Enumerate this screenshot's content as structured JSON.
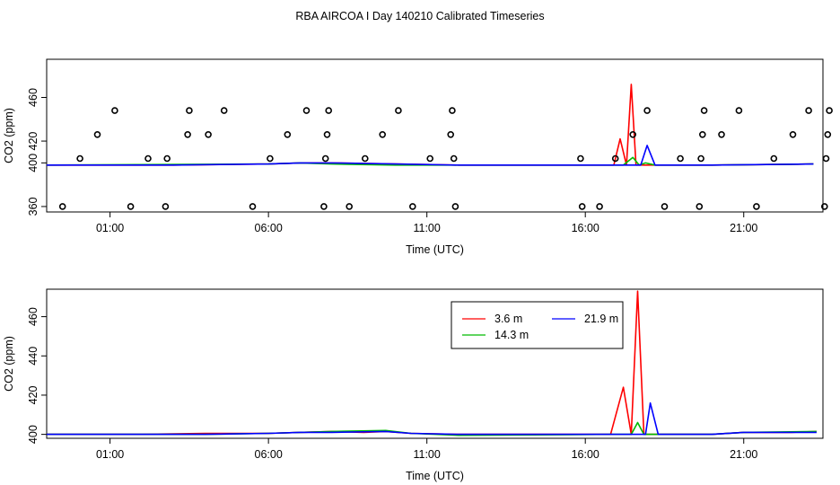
{
  "page": {
    "title": "RBA AIRCOA I  Day 140210  Calibrated Timeseries"
  },
  "chart_data": [
    {
      "type": "line",
      "ylabel": "CO2 (ppm)",
      "xlabel": "Time (UTC)",
      "xlim": [
        -1.0,
        23.5
      ],
      "ylim": [
        355,
        495
      ],
      "xticks": [
        {
          "value": 1,
          "label": "01:00"
        },
        {
          "value": 6,
          "label": "06:00"
        },
        {
          "value": 11,
          "label": "11:00"
        },
        {
          "value": 16,
          "label": "16:00"
        },
        {
          "value": 21,
          "label": "21:00"
        }
      ],
      "yticks": [
        {
          "value": 360,
          "label": "360"
        },
        {
          "value": 400,
          "label": "400"
        },
        {
          "value": 420,
          "label": "420"
        },
        {
          "value": 460,
          "label": "460"
        }
      ],
      "series": [
        {
          "color": "#ff0000",
          "x": [
            -1.0,
            3.0,
            6.0,
            7.0,
            8.0,
            10.0,
            12.0,
            15.0,
            16.5,
            16.9,
            17.1,
            17.3,
            17.45,
            17.6,
            17.8,
            18.0,
            18.5,
            20.0,
            23.2
          ],
          "y": [
            398,
            398,
            399,
            400,
            400,
            399,
            398,
            398,
            398,
            398,
            422,
            398,
            472,
            398,
            398,
            398,
            398,
            398,
            399
          ]
        },
        {
          "color": "#00bb00",
          "x": [
            -1.0,
            6.0,
            7.0,
            8.0,
            10.0,
            12.0,
            16.5,
            17.2,
            17.5,
            17.7,
            17.9,
            18.2,
            20.0,
            23.2
          ],
          "y": [
            398,
            399,
            400,
            399,
            398,
            398,
            398,
            398,
            405,
            398,
            400,
            398,
            398,
            399
          ]
        },
        {
          "color": "#0000ff",
          "x": [
            -1.0,
            3.0,
            6.0,
            7.0,
            8.0,
            10.0,
            12.0,
            16.5,
            17.5,
            17.75,
            17.95,
            18.2,
            20.0,
            23.2
          ],
          "y": [
            398,
            398,
            399,
            400,
            400,
            399,
            398,
            398,
            398,
            398,
            416,
            398,
            398,
            399
          ]
        }
      ],
      "points": {
        "x": [
          -0.5,
          0.05,
          0.6,
          1.15,
          1.65,
          2.2,
          2.75,
          2.8,
          3.45,
          3.5,
          4.1,
          4.6,
          5.5,
          6.05,
          6.6,
          7.2,
          7.75,
          7.8,
          7.85,
          7.9,
          8.55,
          9.05,
          9.6,
          10.1,
          10.55,
          11.1,
          11.75,
          11.8,
          11.85,
          11.9,
          15.85,
          15.9,
          16.45,
          16.95,
          17.5,
          17.95,
          18.5,
          19.0,
          19.6,
          19.65,
          19.7,
          19.75,
          20.3,
          20.85,
          21.4,
          21.95,
          22.55,
          23.05,
          23.55,
          23.6,
          23.65,
          23.7
        ],
        "y": [
          360,
          404,
          426,
          448,
          360,
          404,
          360,
          404,
          426,
          448,
          426,
          448,
          360,
          404,
          426,
          448,
          360,
          404,
          426,
          448,
          360,
          404,
          426,
          448,
          360,
          404,
          426,
          448,
          404,
          360,
          404,
          360,
          360,
          404,
          426,
          448,
          360,
          404,
          360,
          404,
          426,
          448,
          426,
          448,
          360,
          404,
          426,
          448,
          360,
          404,
          426,
          448
        ]
      }
    },
    {
      "type": "line",
      "ylabel": "CO2 (ppm)",
      "xlabel": "Time (UTC)",
      "xlim": [
        -1.0,
        23.5
      ],
      "ylim": [
        398,
        474
      ],
      "xticks": [
        {
          "value": 1,
          "label": "01:00"
        },
        {
          "value": 6,
          "label": "06:00"
        },
        {
          "value": 11,
          "label": "11:00"
        },
        {
          "value": 16,
          "label": "16:00"
        },
        {
          "value": 21,
          "label": "21:00"
        }
      ],
      "yticks": [
        {
          "value": 400,
          "label": "400"
        },
        {
          "value": 420,
          "label": "420"
        },
        {
          "value": 440,
          "label": "440"
        },
        {
          "value": 460,
          "label": "460"
        }
      ],
      "legend": {
        "placement": "top-center",
        "entries": [
          {
            "label": "3.6 m",
            "color": "#ff0000"
          },
          {
            "label": "14.3 m",
            "color": "#00bb00"
          },
          {
            "label": "21.9 m",
            "color": "#0000ff"
          }
        ]
      },
      "series": [
        {
          "name": "3.6 m",
          "color": "#ff0000",
          "x": [
            -1.0,
            2.0,
            4.0,
            6.0,
            7.0,
            8.0,
            9.0,
            9.7,
            10.5,
            12.0,
            15.0,
            16.8,
            17.2,
            17.45,
            17.65,
            17.85,
            18.1,
            18.4,
            20.0,
            21.0,
            22.5,
            23.3
          ],
          "y": [
            400,
            400,
            400.5,
            400.5,
            401,
            401.5,
            401,
            401.5,
            400.5,
            400,
            400,
            400,
            424,
            400,
            473,
            400,
            400,
            400,
            400,
            401,
            401,
            401.5
          ]
        },
        {
          "name": "14.3 m",
          "color": "#00bb00",
          "x": [
            -1.0,
            4.0,
            6.0,
            7.0,
            8.0,
            9.7,
            10.5,
            12.0,
            16.8,
            17.45,
            17.65,
            17.85,
            18.2,
            20.0,
            21.0,
            23.3
          ],
          "y": [
            400,
            400,
            400.5,
            401,
            401.5,
            402,
            400.5,
            399.5,
            400,
            400,
            406,
            400,
            400,
            400,
            401,
            401.5
          ]
        },
        {
          "name": "21.9 m",
          "color": "#0000ff",
          "x": [
            -1.0,
            4.0,
            6.0,
            7.0,
            8.0,
            9.7,
            10.5,
            12.0,
            16.8,
            17.7,
            17.9,
            18.05,
            18.3,
            20.0,
            21.0,
            23.3
          ],
          "y": [
            400,
            400,
            400.5,
            401,
            401,
            401.5,
            400.5,
            400,
            400,
            400,
            400,
            416,
            400,
            400,
            401,
            401
          ]
        }
      ]
    }
  ]
}
